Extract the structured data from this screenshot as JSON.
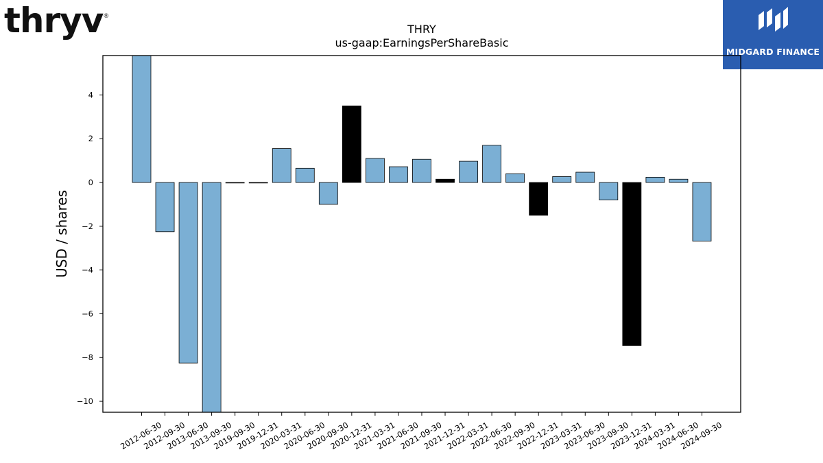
{
  "logos": {
    "left_text": "thryv",
    "left_mark": "®",
    "right_text": "MIDGARD FINANCE",
    "right_icon": "midgard-m-icon",
    "right_bg": "#2a5db0"
  },
  "chart_data": {
    "type": "bar",
    "title": "THRY",
    "subtitle": "us-gaap:EarningsPerShareBasic",
    "ylabel": "USD / shares",
    "xlabel": "",
    "ylim": [
      -10.5,
      5.8
    ],
    "yticks": [
      4,
      2,
      0,
      -2,
      -4,
      -6,
      -8,
      -10
    ],
    "grid": false,
    "colors": {
      "normal": "#7bafd4",
      "highlight": "#000000"
    },
    "categories": [
      "2012-06-30",
      "2012-09-30",
      "2013-06-30",
      "2013-09-30",
      "2019-09-30",
      "2019-12-31",
      "2020-03-31",
      "2020-06-30",
      "2020-09-30",
      "2020-12-31",
      "2021-03-31",
      "2021-06-30",
      "2021-09-30",
      "2021-12-31",
      "2022-03-31",
      "2022-06-30",
      "2022-09-30",
      "2022-12-31",
      "2023-03-31",
      "2023-06-30",
      "2023-09-30",
      "2023-12-31",
      "2024-03-31",
      "2024-06-30",
      "2024-09-30"
    ],
    "values": [
      6.5,
      -2.25,
      -8.25,
      -10.8,
      0.0,
      0.0,
      1.55,
      0.65,
      -1.0,
      3.5,
      1.1,
      0.72,
      1.06,
      0.15,
      0.97,
      1.7,
      0.4,
      -1.5,
      0.27,
      0.47,
      -0.8,
      -7.45,
      0.24,
      0.15,
      -2.68
    ],
    "highlight": [
      false,
      false,
      false,
      false,
      false,
      false,
      false,
      false,
      false,
      true,
      false,
      false,
      false,
      true,
      false,
      false,
      false,
      true,
      false,
      false,
      false,
      true,
      false,
      false,
      false
    ]
  }
}
